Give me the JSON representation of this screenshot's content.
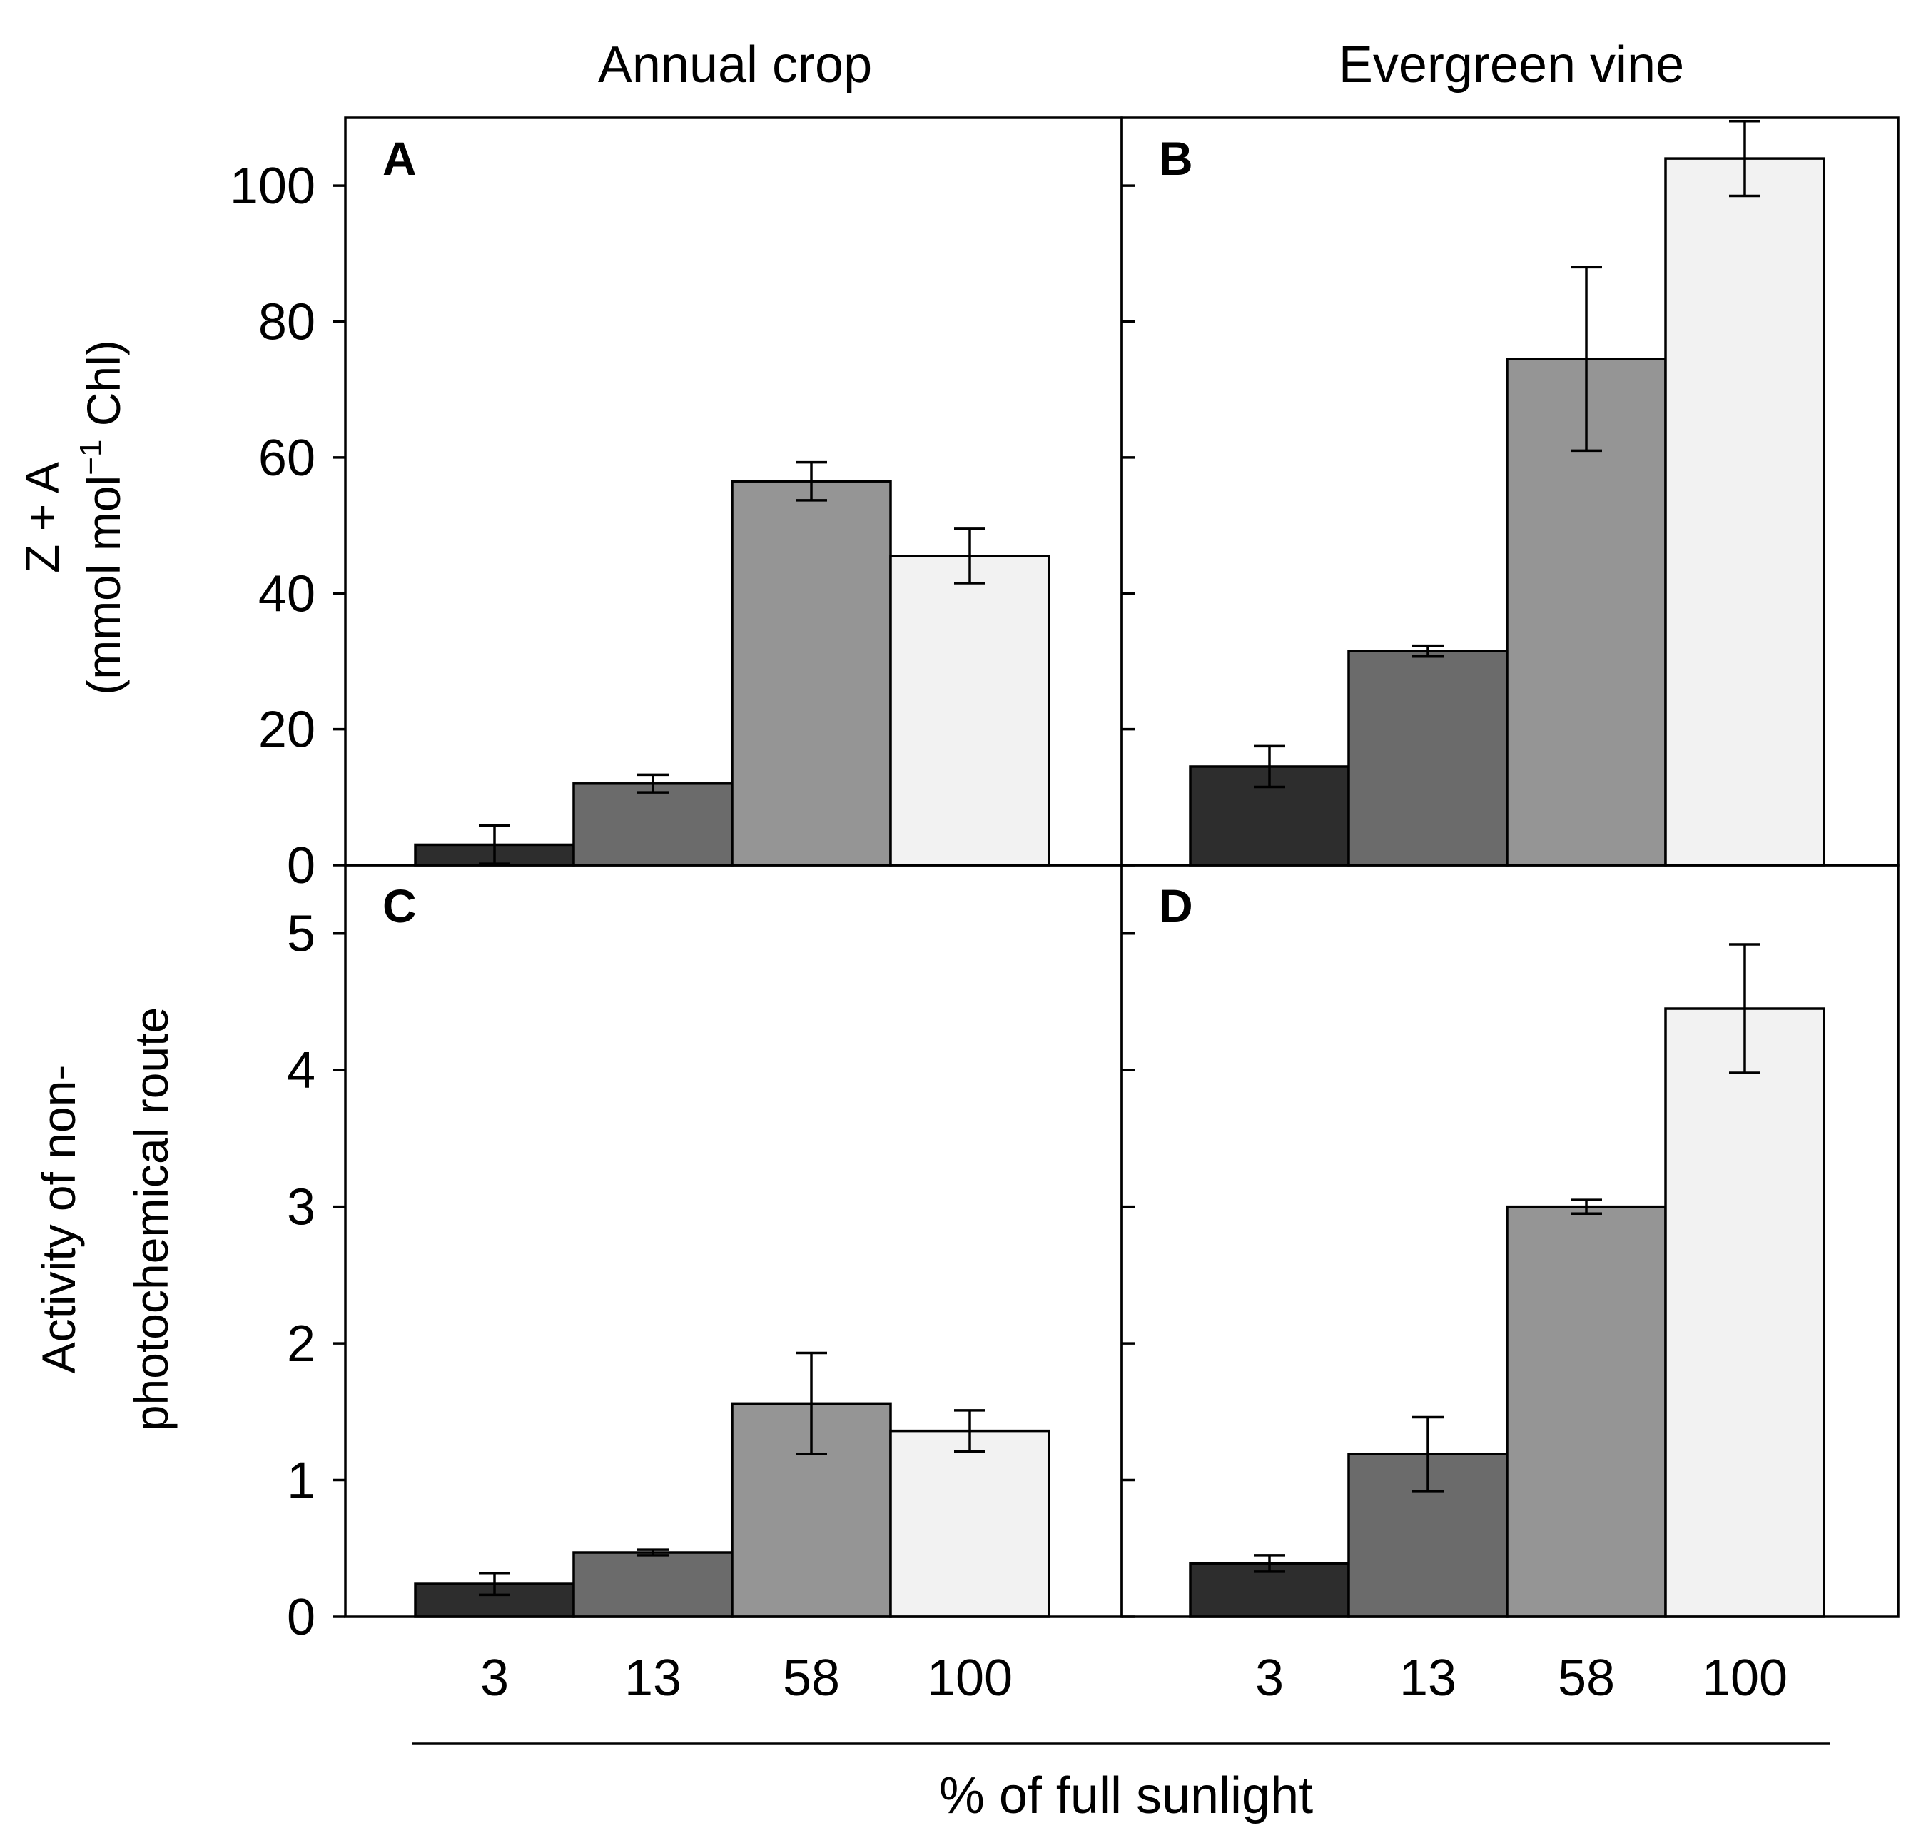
{
  "figure": {
    "column_titles": [
      "Annual crop",
      "Evergreen vine"
    ],
    "xlabel": "% of full sunlight",
    "top_ylabel": {
      "line1": "Z + A",
      "line2_pre": "(mmol mol",
      "line2_sup": "−1",
      "line2_post": " Chl)"
    },
    "bottom_ylabel": {
      "line1": "Activity of non-",
      "line2": "photochemical route"
    }
  },
  "colors": {
    "bars": [
      "#2d2d2d",
      "#6b6b6b",
      "#959595",
      "#f2f2f2"
    ],
    "frame": "#000000"
  },
  "chart_data": [
    {
      "type": "bar",
      "panel": "A",
      "column_title": "Annual crop",
      "categories": [
        "3",
        "13",
        "58",
        "100"
      ],
      "values": [
        3,
        12,
        56.5,
        45.5
      ],
      "errors": [
        2.8,
        1.3,
        2.8,
        4
      ],
      "ylim": [
        0,
        110
      ],
      "yticks": [
        0,
        20,
        40,
        60,
        80,
        100
      ],
      "ylabel": "Z + A (mmol mol−1 Chl)",
      "xlabel": "% of full sunlight"
    },
    {
      "type": "bar",
      "panel": "B",
      "column_title": "Evergreen vine",
      "categories": [
        "3",
        "13",
        "58",
        "100"
      ],
      "values": [
        14.5,
        31.5,
        74.5,
        104
      ],
      "errors": [
        3,
        0.8,
        13.5,
        5.5
      ],
      "ylim": [
        0,
        110
      ],
      "yticks": [
        0,
        20,
        40,
        60,
        80,
        100
      ],
      "ylabel": "Z + A (mmol mol−1 Chl)",
      "xlabel": "% of full sunlight"
    },
    {
      "type": "bar",
      "panel": "C",
      "column_title": "Annual crop",
      "categories": [
        "3",
        "13",
        "58",
        "100"
      ],
      "values": [
        0.24,
        0.47,
        1.56,
        1.36
      ],
      "errors": [
        0.08,
        0.02,
        0.37,
        0.15
      ],
      "ylim": [
        0,
        5.5
      ],
      "yticks": [
        0,
        1,
        2,
        3,
        4,
        5
      ],
      "ylabel": "Activity of non-photochemical route",
      "xlabel": "% of full sunlight"
    },
    {
      "type": "bar",
      "panel": "D",
      "column_title": "Evergreen vine",
      "categories": [
        "3",
        "13",
        "58",
        "100"
      ],
      "values": [
        0.39,
        1.19,
        3.0,
        4.45
      ],
      "errors": [
        0.06,
        0.27,
        0.05,
        0.47
      ],
      "ylim": [
        0,
        5.5
      ],
      "yticks": [
        0,
        1,
        2,
        3,
        4,
        5
      ],
      "ylabel": "Activity of non-photochemical route",
      "xlabel": "% of full sunlight"
    }
  ]
}
